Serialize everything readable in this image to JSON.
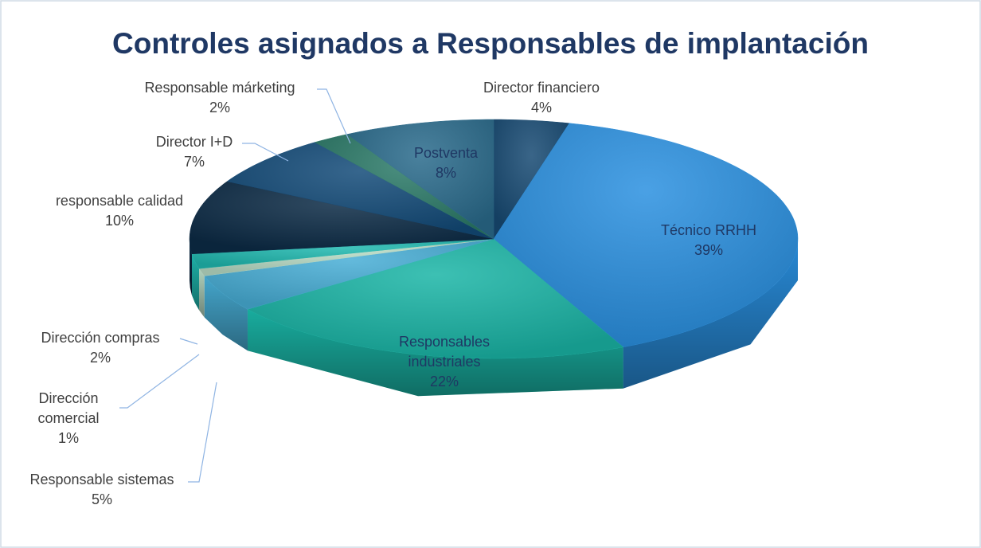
{
  "chart_data": {
    "type": "pie",
    "title": "Controles asignados a Responsables de implantación",
    "categories": [
      "Director financiero",
      "Técnico RRHH",
      "Responsables industriales",
      "Responsable sistemas",
      "Dirección comercial",
      "Dirección compras",
      "responsable calidad",
      "Director I+D",
      "Responsable márketing",
      "Postventa"
    ],
    "values": [
      4,
      39,
      22,
      5,
      1,
      2,
      10,
      7,
      2,
      8
    ],
    "value_labels": [
      "4%",
      "39%",
      "22%",
      "5%",
      "1%",
      "2%",
      "10%",
      "7%",
      "2%",
      "8%"
    ],
    "colors": [
      "#174a73",
      "#2a90e0",
      "#1ab5a6",
      "#48aed6",
      "#b9dcc6",
      "#20b9b0",
      "#0c2b46",
      "#134b79",
      "#2b7a68",
      "#2a6b8c"
    ]
  }
}
